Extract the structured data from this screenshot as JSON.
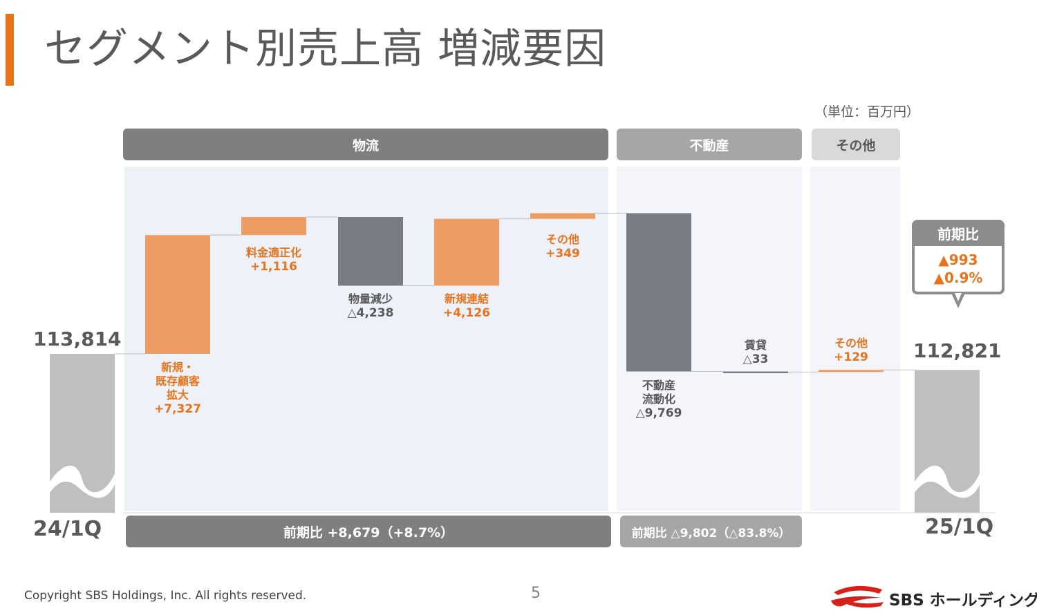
{
  "title": "セグメント別売上高 増減要因",
  "unit_label": "（単位：百万円）",
  "colors": {
    "accent": "#e9731a",
    "increase": "#ed9d64",
    "decrease": "#787c85",
    "base": "#bfbfbf",
    "panel": "#eef1f8"
  },
  "segments": {
    "logistics": "物流",
    "realestate": "不動産",
    "other": "その他"
  },
  "footer": {
    "logistics": "前期比 +8,679（+8.7%）",
    "realestate": "前期比 △9,802（△83.8%）"
  },
  "callout": {
    "title": "前期比",
    "value1": "▲993",
    "value2": "▲0.9%"
  },
  "chart_data": {
    "type": "bar",
    "subtype": "waterfall",
    "start": {
      "label": "24/1Q",
      "value": 113814,
      "value_label": "113,814"
    },
    "end": {
      "label": "25/1Q",
      "value": 112821,
      "value_label": "112,821"
    },
    "steps": [
      {
        "segment": "物流",
        "name_lines": [
          "新規・",
          "既存顧客",
          "拡大"
        ],
        "value": 7327,
        "value_label": "+7,327"
      },
      {
        "segment": "物流",
        "name_lines": [
          "料金適正化"
        ],
        "value": 1116,
        "value_label": "+1,116"
      },
      {
        "segment": "物流",
        "name_lines": [
          "物量減少"
        ],
        "value": -4238,
        "value_label": "△4,238"
      },
      {
        "segment": "物流",
        "name_lines": [
          "新規連結"
        ],
        "value": 4126,
        "value_label": "+4,126"
      },
      {
        "segment": "物流",
        "name_lines": [
          "その他"
        ],
        "value": 349,
        "value_label": "+349"
      },
      {
        "segment": "不動産",
        "name_lines": [
          "不動産",
          "流動化"
        ],
        "value": -9769,
        "value_label": "△9,769"
      },
      {
        "segment": "不動産",
        "name_lines": [
          "賃貸"
        ],
        "value": -33,
        "value_label": "△33"
      },
      {
        "segment": "その他",
        "name_lines": [
          "その他"
        ],
        "value": 129,
        "value_label": "+129"
      }
    ]
  },
  "copyright": "Copyright SBS Holdings, Inc. All rights reserved.",
  "page_number": "5",
  "logo_text": "SBS ホールディングス"
}
